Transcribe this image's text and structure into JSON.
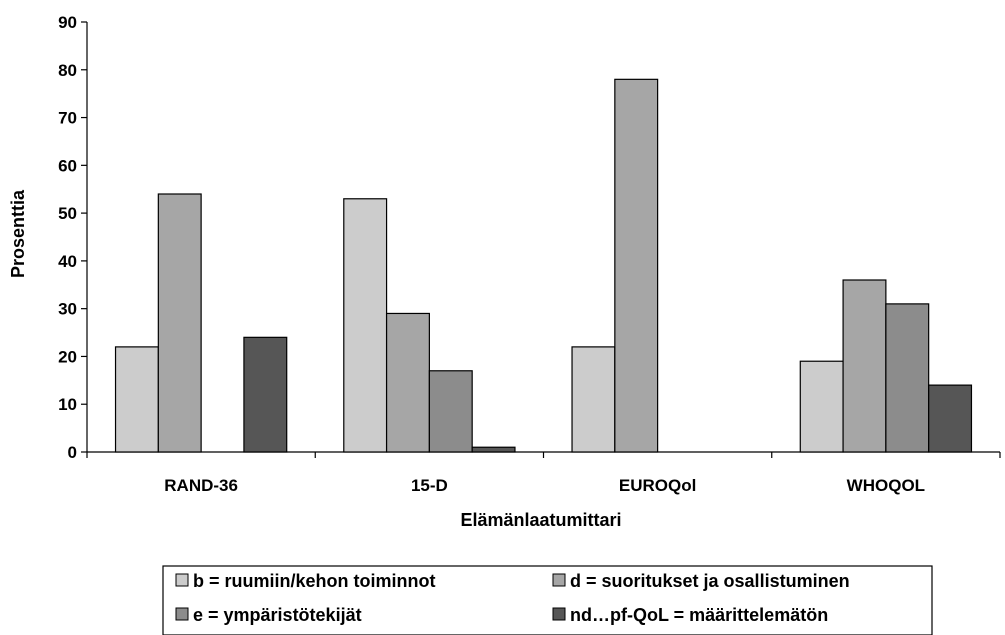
{
  "chart_data": {
    "type": "bar",
    "title": "",
    "xlabel": "Elämänlaatumittari",
    "ylabel": "Prosenttia",
    "ylim": [
      0,
      90
    ],
    "yticks": [
      0,
      10,
      20,
      30,
      40,
      50,
      60,
      70,
      80,
      90
    ],
    "categories": [
      "RAND-36",
      "15-D",
      "EUROQol",
      "WHOQOL"
    ],
    "series": [
      {
        "name": "b = ruumiin/kehon toiminnot",
        "values": [
          22,
          53,
          22,
          19
        ],
        "color": "#cccccc"
      },
      {
        "name": "d = suoritukset ja osallistuminen",
        "values": [
          54,
          29,
          78,
          36
        ],
        "color": "#a6a6a6"
      },
      {
        "name": "e = ympäristötekijät",
        "values": [
          0,
          17,
          0,
          31
        ],
        "color": "#8c8c8c"
      },
      {
        "name": "nd…pf-QoL = määrittelemätön",
        "values": [
          24,
          1,
          0,
          14
        ],
        "color": "#565656"
      }
    ],
    "grid": false,
    "legend_position": "bottom"
  }
}
